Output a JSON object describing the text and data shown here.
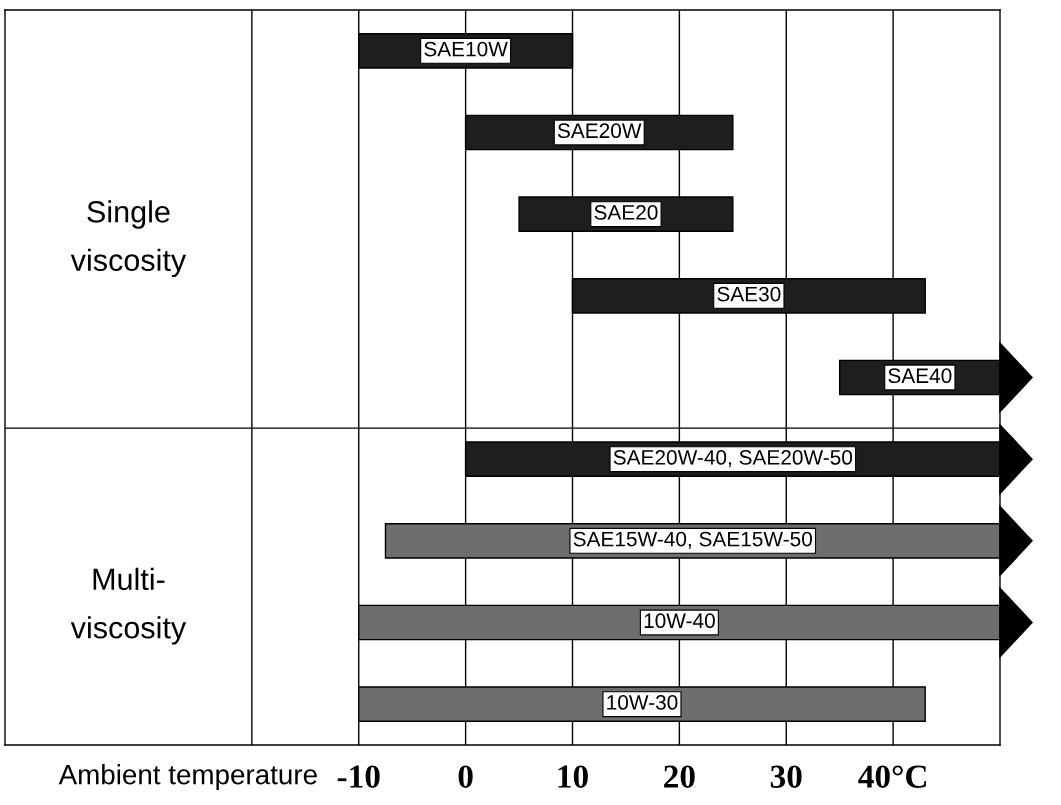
{
  "chart_data": {
    "type": "bar",
    "orientation": "horizontal",
    "categories": [
      "SAE10W",
      "SAE20W",
      "SAE20",
      "SAE30",
      "SAE40",
      "SAE20W-40, SAE20W-50",
      "SAE15W-40, SAE15W-50",
      "10W-40",
      "10W-30"
    ],
    "base": [
      -10,
      0,
      5,
      10,
      35,
      0,
      -7.5,
      -10,
      -10
    ],
    "values": [
      20,
      25,
      20,
      33,
      15,
      50,
      57.5,
      60,
      53
    ],
    "colors": [
      "#1e1e1e",
      "#1e1e1e",
      "#1e1e1e",
      "#1e1e1e",
      "#1e1e1e",
      "#1e1e1e",
      "#6e6e6e",
      "#6e6e6e",
      "#6e6e6e"
    ],
    "xlim": [
      -43.1,
      50
    ],
    "xticks": [
      {
        "value": -20,
        "label": null
      },
      -10,
      0,
      10,
      20,
      30,
      {
        "value": 40,
        "label": "40°C"
      }
    ],
    "xlabel": "Ambient temperature",
    "grid": "x",
    "tick_labels": "x",
    "annotations": [
      "Single\nviscosity",
      "Multi-\nviscosity"
    ]
  }
}
